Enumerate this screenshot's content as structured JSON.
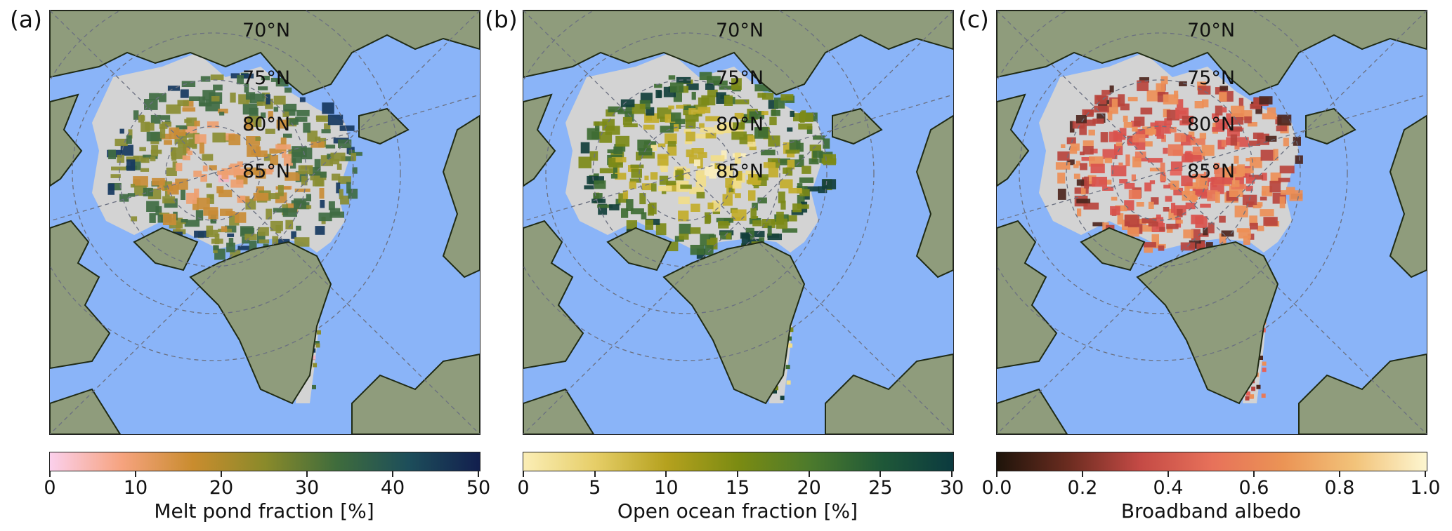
{
  "panels": [
    {
      "letter": "(a)",
      "colorbar_label": "Melt pond fraction [%]",
      "ticks": [
        "0",
        "10",
        "20",
        "30",
        "40",
        "50"
      ],
      "gradient": [
        "#fbd0ec",
        "#f6a37f",
        "#c98c2e",
        "#8a8a2a",
        "#3f6c3c",
        "#1d4e5a",
        "#121f4e"
      ],
      "ice_colors": [
        "#f4b3c2",
        "#eea070",
        "#c98c36",
        "#8a8d33",
        "#3f6b42",
        "#16385f"
      ]
    },
    {
      "letter": "(b)",
      "colorbar_label": "Open ocean fraction [%]",
      "ticks": [
        "0",
        "5",
        "10",
        "15",
        "20",
        "25",
        "30"
      ],
      "gradient": [
        "#fbeeb6",
        "#e6ce68",
        "#b5a11e",
        "#7b8b12",
        "#4c7a2c",
        "#1f5838",
        "#0b3a3f"
      ],
      "ice_colors": [
        "#faeebd",
        "#f1dd8a",
        "#c2ad2a",
        "#7c8a18",
        "#3e6d33",
        "#123f3b"
      ]
    },
    {
      "letter": "(c)",
      "colorbar_label": "Broadband albedo",
      "ticks": [
        "0.0",
        "0.2",
        "0.4",
        "0.6",
        "0.8",
        "1.0"
      ],
      "gradient": [
        "#1e140a",
        "#6b2c20",
        "#c44a45",
        "#e7715a",
        "#eb9455",
        "#f2c37a",
        "#fdf6d0"
      ],
      "ice_colors": [
        "#e5625a",
        "#e87a58",
        "#d9534d",
        "#ed8f57",
        "#b8443d",
        "#4d261e"
      ]
    }
  ],
  "lat_labels": [
    "70°N",
    "75°N",
    "80°N",
    "85°N"
  ],
  "colors": {
    "ocean": "#8ab4f8",
    "land": "#8f9c7c",
    "coast": "#1f2a14",
    "no_data": "#d3d3d3",
    "grid": "#6b7080"
  }
}
